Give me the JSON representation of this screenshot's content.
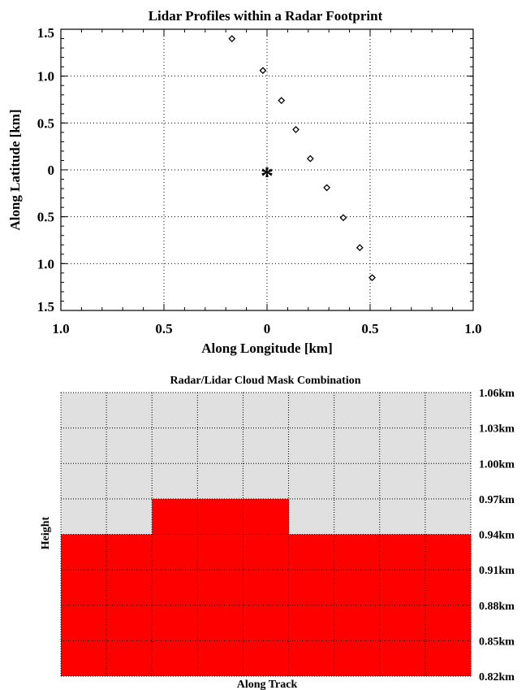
{
  "chart_data": [
    {
      "type": "scatter",
      "title": "Lidar Profiles within a Radar Footprint",
      "xlabel": "Along  Longitude  [km]",
      "ylabel": "Along  Latitude  [km]",
      "xlim": [
        -1.0,
        1.0
      ],
      "ylim": [
        -1.5,
        1.5
      ],
      "x_ticks": [
        -1.0,
        -0.5,
        0,
        0.5,
        1.0
      ],
      "x_tick_labels": [
        "1.0",
        "0.5",
        "0",
        "0.5",
        "1.0"
      ],
      "y_ticks": [
        1.5,
        1.0,
        0.5,
        0,
        -0.5,
        -1.0,
        -1.5
      ],
      "y_tick_labels": [
        "1.5",
        "1.0",
        "0.5",
        "0",
        "0.5",
        "1.0",
        "1.5"
      ],
      "grid": true,
      "series": [
        {
          "marker": "diamond",
          "x": [
            -0.17,
            -0.02,
            0.07,
            0.14,
            0.21,
            0.29,
            0.37,
            0.45,
            0.51
          ],
          "y": [
            1.4,
            1.06,
            0.74,
            0.43,
            0.12,
            -0.19,
            -0.51,
            -0.83,
            -1.15
          ]
        }
      ],
      "center_marker": {
        "symbol": "*",
        "x": 0,
        "y": 0
      }
    },
    {
      "type": "heatmap",
      "title": "Radar/Lidar  Cloud  Mask  Combination",
      "xlabel": "Along  Track",
      "ylabel": "Height",
      "y_tick_labels": [
        "1.06km",
        "1.03km",
        "1.00km",
        "0.97km",
        "0.94km",
        "0.91km",
        "0.88km",
        "0.85km",
        "0.82km"
      ],
      "n_columns": 9,
      "cloud_top_level_index_per_column": [
        4,
        4,
        3,
        3,
        3,
        4,
        4,
        4,
        4
      ],
      "colors": {
        "clear": "#e0e0e0",
        "cloud": "#ff0000"
      },
      "grid": true
    }
  ]
}
